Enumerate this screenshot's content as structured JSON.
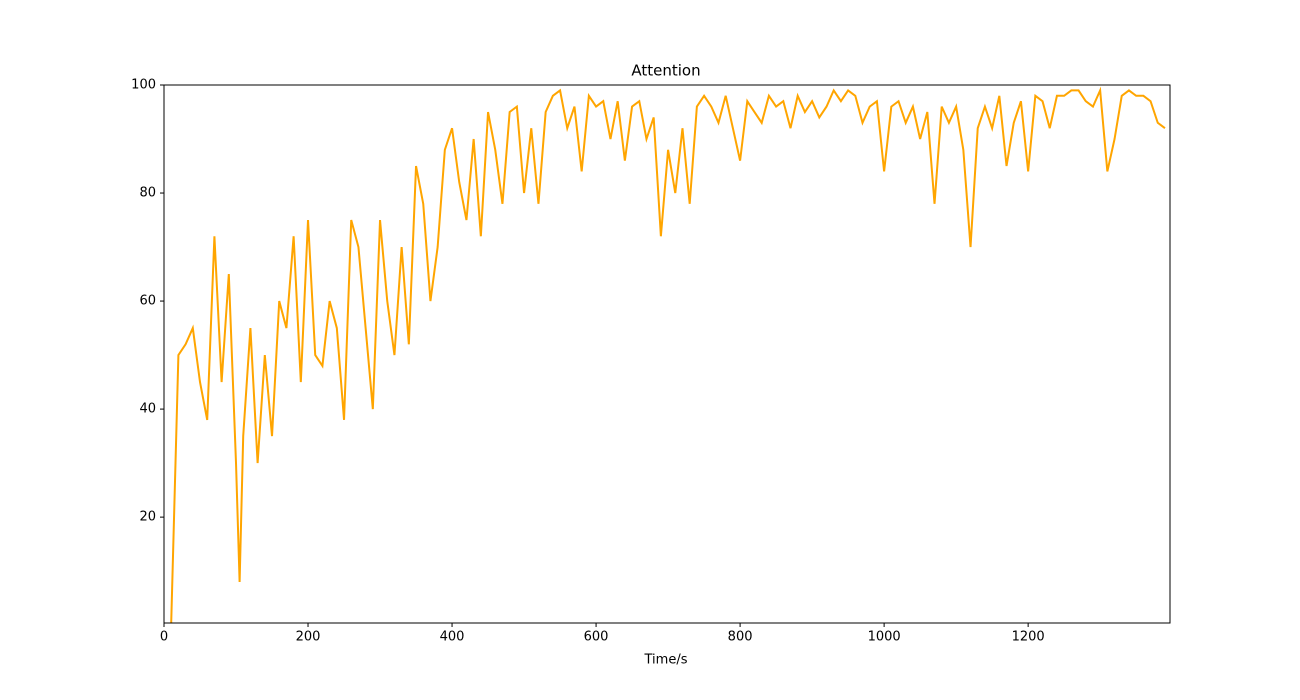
{
  "chart_data": {
    "type": "line",
    "title": "Attention",
    "x_label": "Time/s",
    "x": [
      10,
      20,
      30,
      40,
      50,
      60,
      70,
      80,
      90,
      100,
      105,
      110,
      120,
      130,
      140,
      150,
      160,
      170,
      180,
      190,
      200,
      210,
      220,
      230,
      240,
      250,
      260,
      270,
      280,
      290,
      300,
      310,
      320,
      330,
      340,
      350,
      360,
      370,
      380,
      390,
      400,
      410,
      420,
      430,
      440,
      450,
      460,
      470,
      480,
      490,
      500,
      510,
      520,
      530,
      540,
      550,
      560,
      570,
      580,
      590,
      600,
      610,
      620,
      630,
      640,
      650,
      660,
      670,
      680,
      690,
      700,
      710,
      720,
      730,
      740,
      750,
      760,
      770,
      780,
      790,
      800,
      810,
      820,
      830,
      840,
      850,
      860,
      870,
      880,
      890,
      900,
      910,
      920,
      930,
      940,
      950,
      960,
      970,
      980,
      990,
      1000,
      1010,
      1020,
      1030,
      1040,
      1050,
      1060,
      1070,
      1080,
      1090,
      1100,
      1110,
      1120,
      1130,
      1140,
      1150,
      1160,
      1170,
      1180,
      1190,
      1200,
      1210,
      1220,
      1230,
      1240,
      1250,
      1260,
      1270,
      1280,
      1290,
      1300,
      1310,
      1320,
      1330,
      1340,
      1350,
      1360,
      1370,
      1380,
      1390
    ],
    "values": [
      0.4,
      50,
      52,
      55,
      45,
      38,
      72,
      45,
      65,
      30,
      8,
      35,
      55,
      30,
      50,
      35,
      60,
      55,
      72,
      45,
      75,
      50,
      48,
      60,
      55,
      38,
      75,
      70,
      55,
      40,
      75,
      60,
      50,
      70,
      52,
      85,
      78,
      60,
      70,
      88,
      92,
      82,
      75,
      90,
      72,
      95,
      88,
      78,
      95,
      96,
      80,
      92,
      78,
      95,
      98,
      99,
      92,
      96,
      84,
      98,
      96,
      97,
      90,
      97,
      86,
      96,
      97,
      90,
      94,
      72,
      88,
      80,
      92,
      78,
      96,
      98,
      96,
      93,
      98,
      92,
      86,
      97,
      95,
      93,
      98,
      96,
      97,
      92,
      98,
      95,
      97,
      94,
      96,
      99,
      97,
      99,
      98,
      93,
      96,
      97,
      84,
      96,
      97,
      93,
      96,
      90,
      95,
      78,
      96,
      93,
      96,
      88,
      70,
      92,
      96,
      92,
      98,
      85,
      93,
      97,
      84,
      98,
      97,
      92,
      98,
      98,
      99,
      99,
      97,
      96,
      99,
      84,
      90,
      98,
      99,
      98,
      98,
      97,
      93,
      92
    ],
    "color": "#ffa500",
    "xlim": [
      0,
      1397
    ],
    "ylim": [
      0.4,
      100
    ],
    "xticks": [
      0,
      200,
      400,
      600,
      800,
      1000,
      1200
    ],
    "yticks": [
      20,
      40,
      60,
      80,
      100
    ]
  }
}
